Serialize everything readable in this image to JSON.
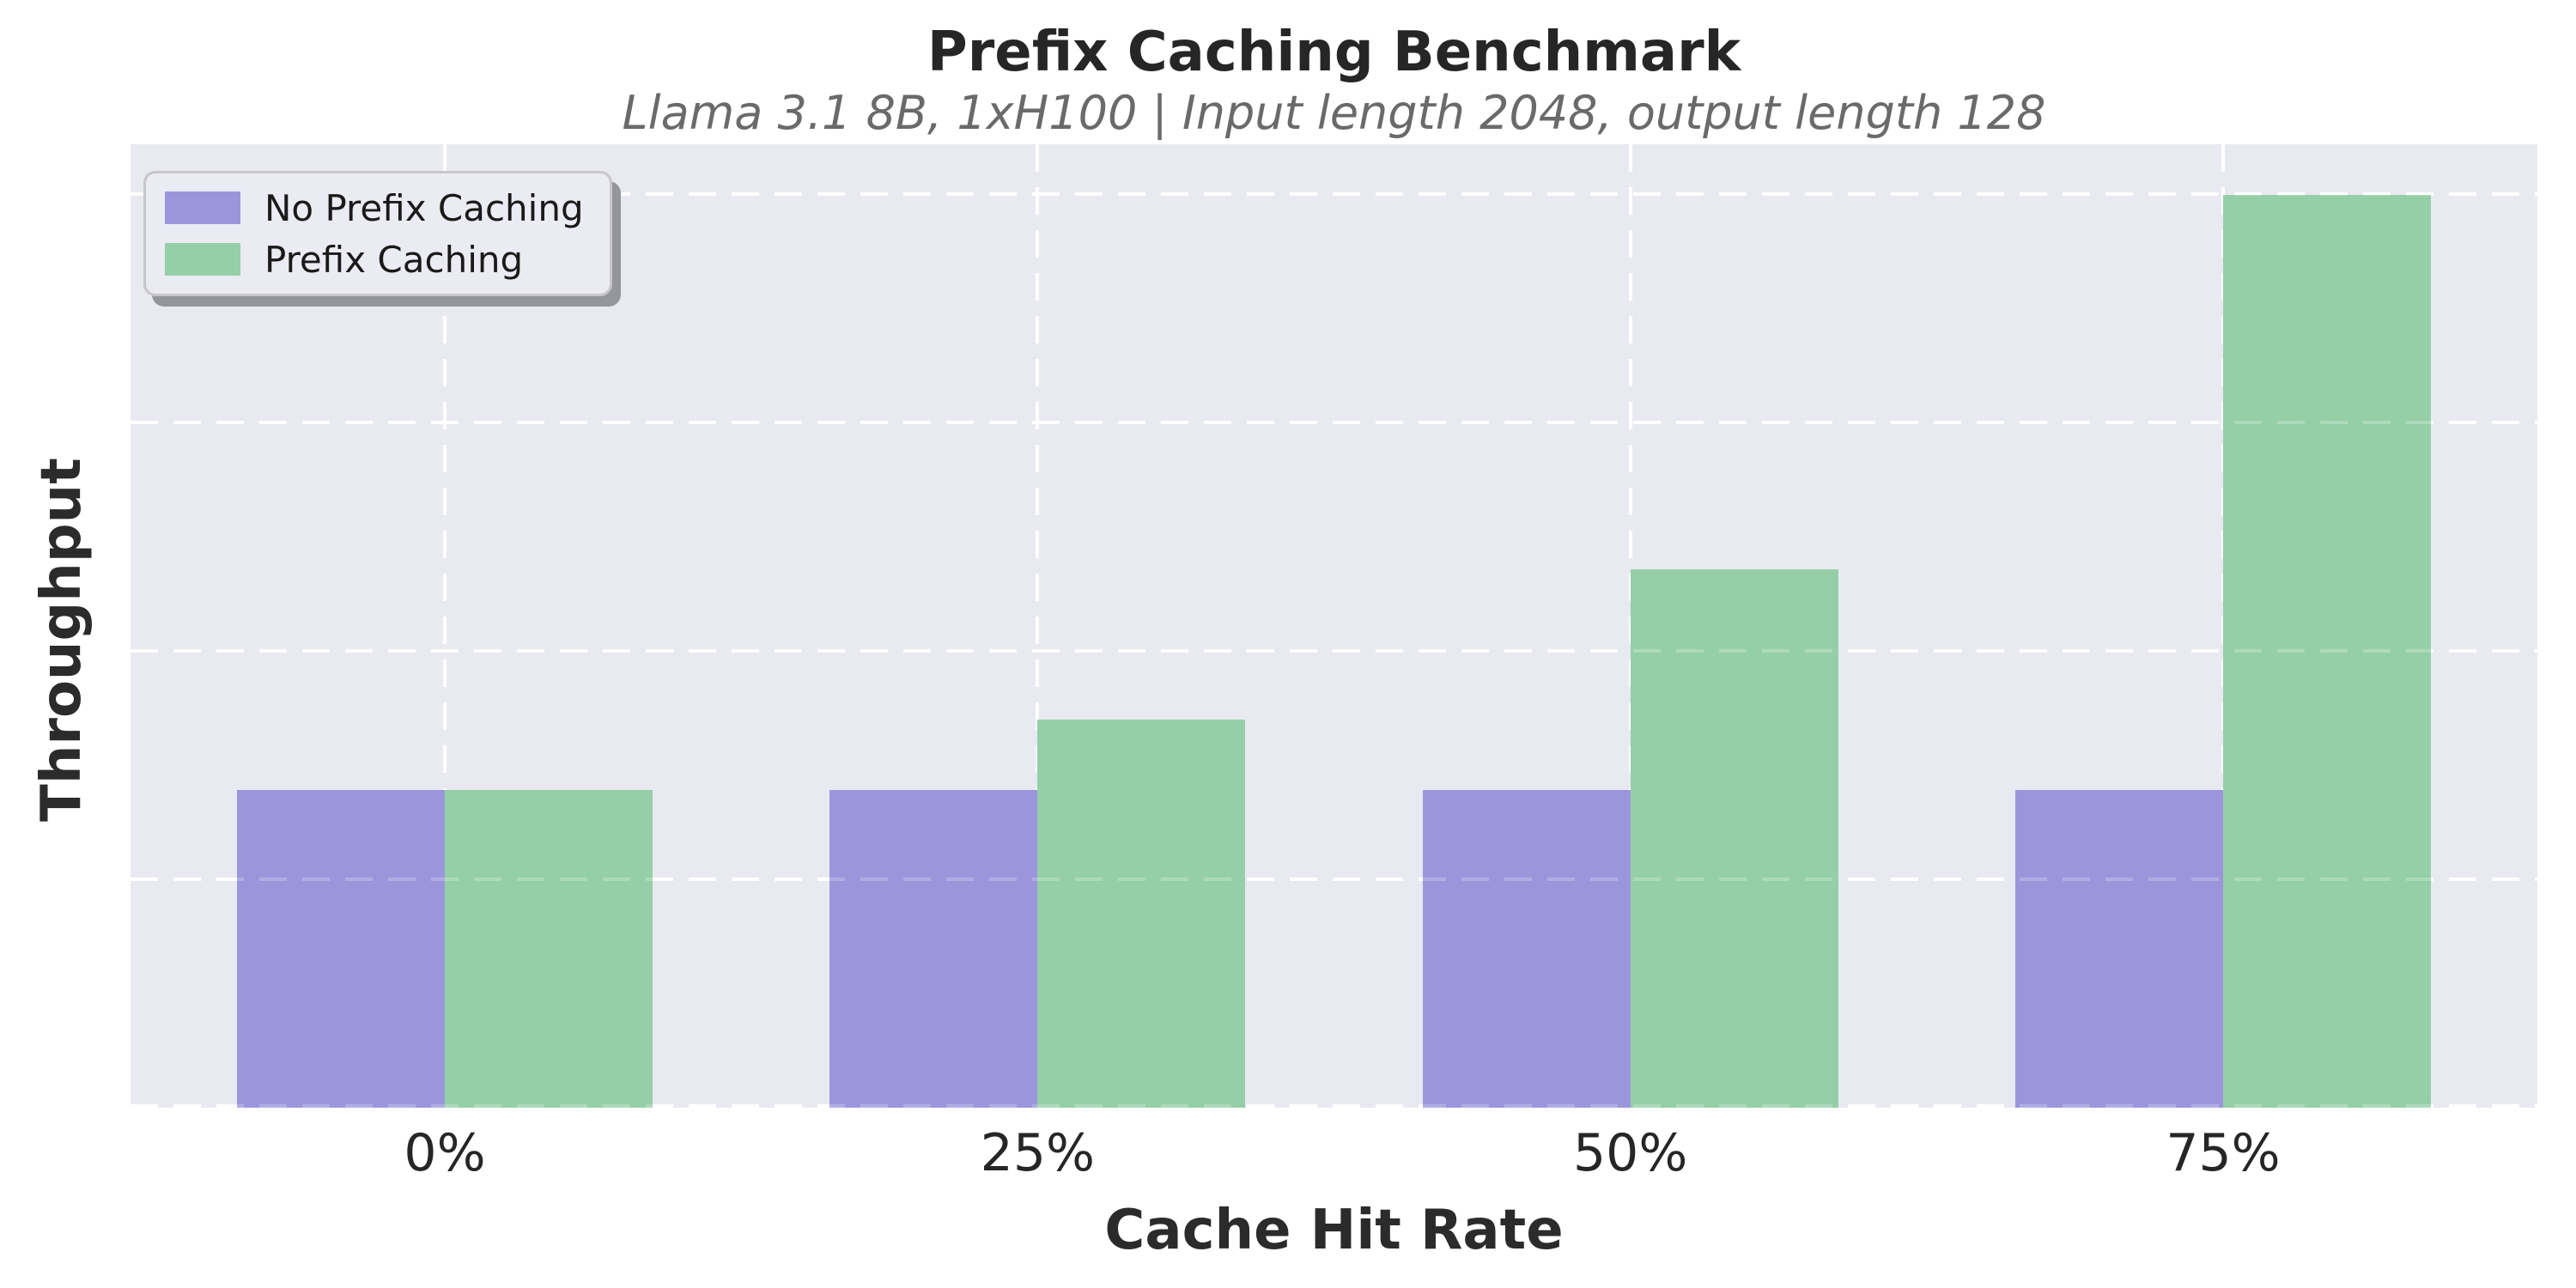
{
  "title": "Prefix Caching Benchmark",
  "subtitle": "Llama 3.1 8B, 1xH100 | Input length 2048, output length 128",
  "chart_data": {
    "type": "bar",
    "categories": [
      "0%",
      "25%",
      "50%",
      "75%"
    ],
    "series": [
      {
        "name": "No Prefix Caching",
        "color": "#9b96dc",
        "values": [
          1.39,
          1.39,
          1.39,
          1.39
        ]
      },
      {
        "name": "Prefix Caching",
        "color": "#95cfa7",
        "values": [
          1.39,
          1.7,
          2.36,
          4.0
        ]
      }
    ],
    "xlabel": "Cache Hit Rate",
    "ylabel": "Throughput",
    "ylim": [
      0,
      4.22
    ],
    "yticks": [
      0,
      1,
      2,
      3,
      4
    ],
    "ytick_labels": [],
    "values_note": "relative units estimated from gridlines; y axis has no numeric tick labels",
    "grid": "white dashed horizontal and vertical gridlines (seaborn darkgrid style)",
    "legend_position": "upper left",
    "plot_background": "#e9e9f2",
    "figure_background": "#ffffff"
  }
}
